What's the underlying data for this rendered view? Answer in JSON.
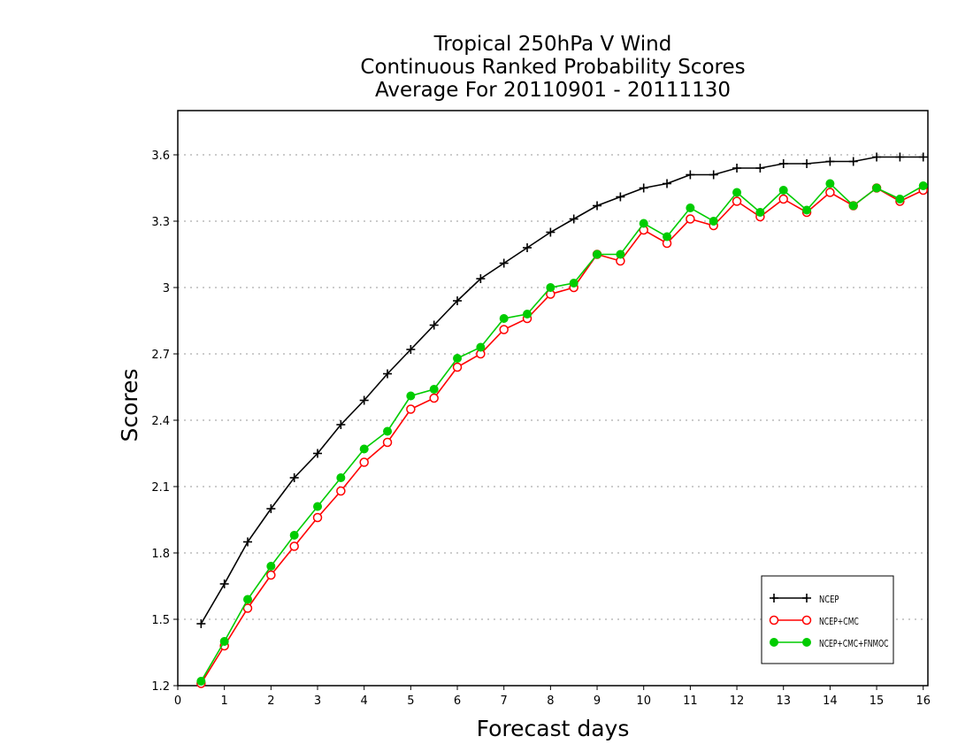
{
  "chart_data": {
    "type": "line",
    "title_lines": [
      "Tropical 250hPa V Wind",
      "Continuous Ranked Probability Scores",
      "Average For 20110901 - 20111130"
    ],
    "xlabel": "Forecast days",
    "ylabel": "Scores",
    "xlim": [
      0,
      16.1
    ],
    "ylim": [
      1.2,
      3.8
    ],
    "xticks": [
      "0",
      "1",
      "2",
      "3",
      "4",
      "5",
      "6",
      "7",
      "8",
      "9",
      "10",
      "11",
      "12",
      "13",
      "14",
      "15",
      "16"
    ],
    "yticks": [
      "1.2",
      "1.5",
      "1.8",
      "2.1",
      "2.4",
      "2.7",
      "3",
      "3.3",
      "3.6"
    ],
    "grid": "horizontal-dotted",
    "legend_position": "bottom-right",
    "x": [
      0.5,
      1,
      1.5,
      2,
      2.5,
      3,
      3.5,
      4,
      4.5,
      5,
      5.5,
      6,
      6.5,
      7,
      7.5,
      8,
      8.5,
      9,
      9.5,
      10,
      10.5,
      11,
      11.5,
      12,
      12.5,
      13,
      13.5,
      14,
      14.5,
      15,
      15.5,
      16
    ],
    "series": [
      {
        "name": "NCEP",
        "color": "#000000",
        "marker": "plus",
        "values": [
          1.48,
          1.66,
          1.85,
          2.0,
          2.14,
          2.25,
          2.38,
          2.49,
          2.61,
          2.72,
          2.83,
          2.94,
          3.04,
          3.11,
          3.18,
          3.25,
          3.31,
          3.37,
          3.41,
          3.45,
          3.47,
          3.51,
          3.51,
          3.54,
          3.54,
          3.56,
          3.56,
          3.57,
          3.57,
          3.59,
          3.59,
          3.59
        ]
      },
      {
        "name": "NCEP+CMC",
        "color": "#ff0000",
        "marker": "open-circle",
        "values": [
          1.21,
          1.38,
          1.55,
          1.7,
          1.83,
          1.96,
          2.08,
          2.21,
          2.3,
          2.45,
          2.5,
          2.64,
          2.7,
          2.81,
          2.86,
          2.97,
          3.0,
          3.15,
          3.12,
          3.26,
          3.2,
          3.31,
          3.28,
          3.39,
          3.32,
          3.4,
          3.34,
          3.43,
          3.37,
          3.45,
          3.39,
          3.44
        ]
      },
      {
        "name": "NCEP+CMC+FNMOC",
        "color": "#00cc00",
        "marker": "filled-circle",
        "values": [
          1.22,
          1.4,
          1.59,
          1.74,
          1.88,
          2.01,
          2.14,
          2.27,
          2.35,
          2.51,
          2.54,
          2.68,
          2.73,
          2.86,
          2.88,
          3.0,
          3.02,
          3.15,
          3.15,
          3.29,
          3.23,
          3.36,
          3.3,
          3.43,
          3.34,
          3.44,
          3.35,
          3.47,
          3.37,
          3.45,
          3.4,
          3.46
        ]
      }
    ]
  }
}
